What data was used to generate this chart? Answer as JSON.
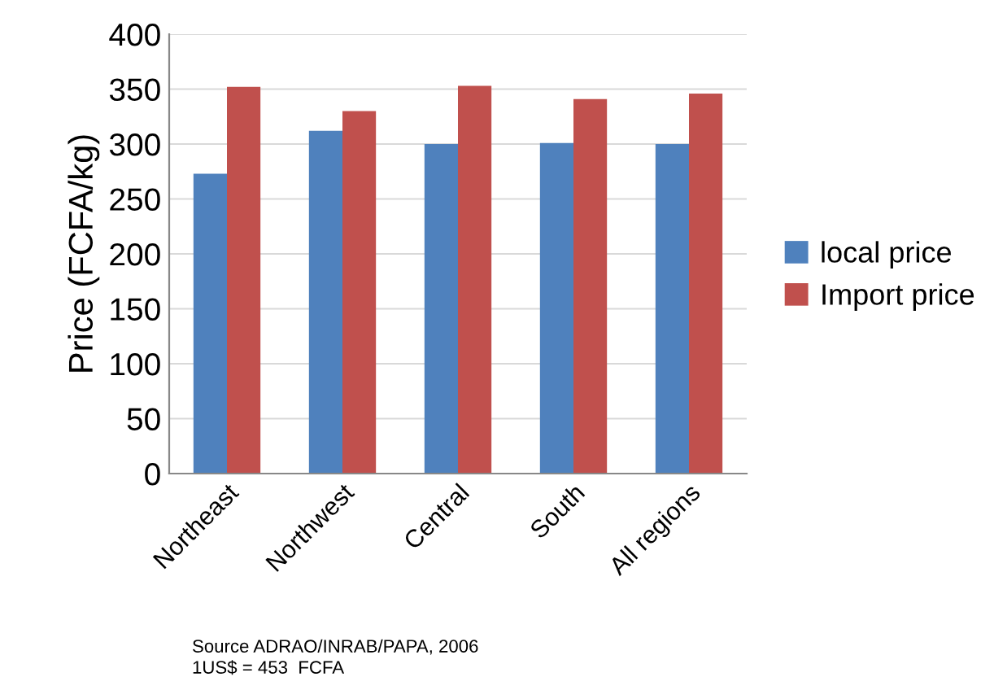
{
  "chart_data": {
    "type": "bar",
    "ylabel": "Price (FCFA/kg)",
    "categories": [
      "Northeast",
      "Northwest",
      "Central",
      "South",
      "All regions"
    ],
    "series": [
      {
        "name": "local price",
        "color": "#4f81bd",
        "values": [
          273,
          312,
          300,
          301,
          300
        ]
      },
      {
        "name": "Import price",
        "color": "#c0504d",
        "values": [
          352,
          330,
          353,
          341,
          346
        ]
      }
    ],
    "ylim": [
      0,
      400
    ],
    "yticks": [
      0,
      50,
      100,
      150,
      200,
      250,
      300,
      350,
      400
    ],
    "grid": "y",
    "legend": "right",
    "annotations": [
      "Source ADRAO/INRAB/PAPA, 2006",
      "1US$ = 453  FCFA"
    ]
  }
}
